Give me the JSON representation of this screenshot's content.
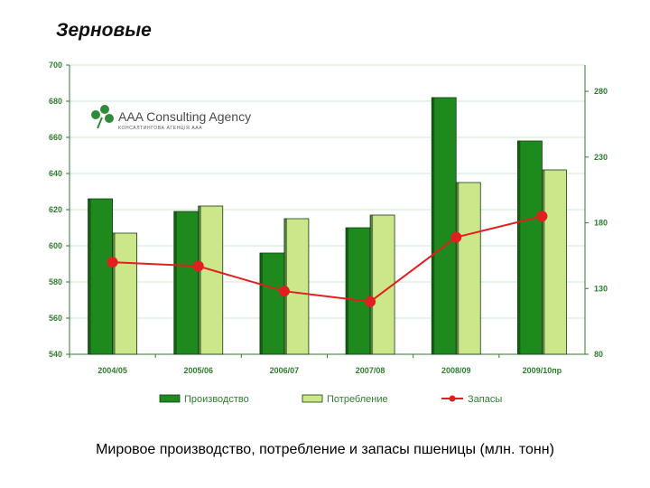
{
  "heading": "Зерновые",
  "caption": "Мировое производство, потребление и запасы пшеницы (млн. тонн)",
  "logo": {
    "main_text": "AAA Consulting Agency",
    "sub_text": "КОНСАЛТИНГОВА АГЕНЦІЯ ААА"
  },
  "chart_data": {
    "type": "bar",
    "categories": [
      "2004/05",
      "2005/06",
      "2006/07",
      "2007/08",
      "2008/09",
      "2009/10пр"
    ],
    "series": [
      {
        "name": "Производство",
        "kind": "bar",
        "axis": "left",
        "color": "#1e8a1e",
        "values": [
          626,
          619,
          596,
          610,
          682,
          658
        ]
      },
      {
        "name": "Потребление",
        "kind": "bar",
        "axis": "left",
        "color": "#cce68a",
        "values": [
          607,
          622,
          615,
          617,
          635,
          642
        ]
      },
      {
        "name": "Запасы",
        "kind": "line",
        "axis": "right",
        "color": "#e02020",
        "values": [
          150,
          147,
          128,
          120,
          169,
          185
        ]
      }
    ],
    "y_left": {
      "min": 540,
      "max": 700,
      "ticks": [
        540,
        560,
        580,
        600,
        620,
        640,
        660,
        680,
        700
      ]
    },
    "y_right": {
      "min": 80,
      "max": 300,
      "ticks": [
        80,
        130,
        180,
        230,
        280
      ]
    },
    "grid": true,
    "legend_position": "bottom"
  }
}
